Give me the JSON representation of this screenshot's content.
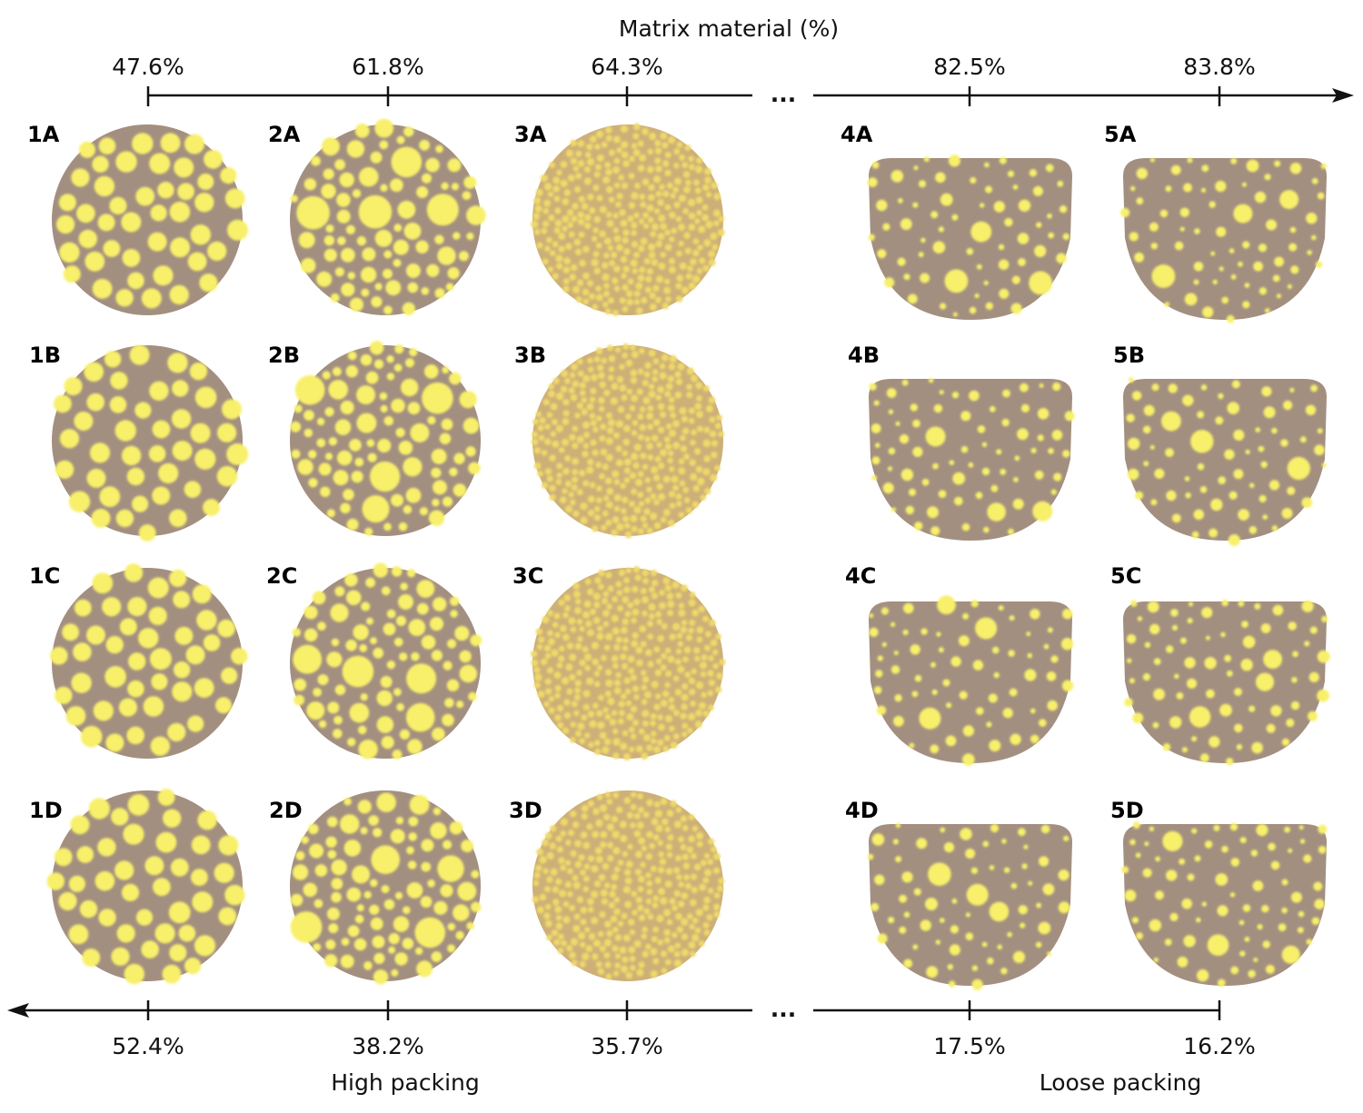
{
  "top_axis": {
    "title": "Matrix material (%)",
    "ticks": [
      "47.6%",
      "61.8%",
      "64.3%",
      "82.5%",
      "83.8%"
    ],
    "ellipsis": "..."
  },
  "bottom_axis": {
    "ticks": [
      "52.4%",
      "38.2%",
      "35.7%",
      "17.5%",
      "16.2%"
    ],
    "ellipsis": "...",
    "left_label": "High packing",
    "right_label": "Loose packing"
  },
  "samples": [
    [
      "1A",
      "2A",
      "3A",
      "4A",
      "5A"
    ],
    [
      "1B",
      "2B",
      "3B",
      "4B",
      "5B"
    ],
    [
      "1C",
      "2C",
      "3C",
      "4C",
      "5C"
    ],
    [
      "1D",
      "2D",
      "3D",
      "4D",
      "5D"
    ]
  ],
  "colors": {
    "matrix": "#a38f80",
    "particle": "#f8f06a",
    "fine_matrix": "#cdb077",
    "fine_particle": "#efd96a",
    "axis": "#111111"
  }
}
